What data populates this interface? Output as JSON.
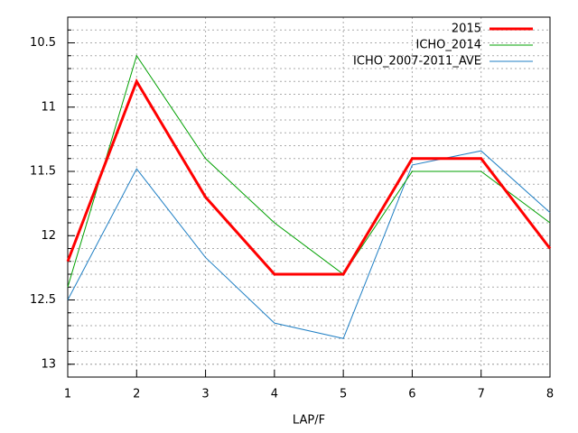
{
  "chart_data": {
    "type": "line",
    "x_label": "LAP/F",
    "x": [
      1,
      2,
      3,
      4,
      5,
      6,
      7,
      8
    ],
    "series": [
      {
        "name": "2015",
        "color": "#ff0000",
        "width": 3,
        "values": [
          12.2,
          10.8,
          11.7,
          12.3,
          12.3,
          11.4,
          11.4,
          12.1
        ]
      },
      {
        "name": "ICHO_2014",
        "color": "#00a000",
        "width": 1,
        "values": [
          12.4,
          10.6,
          11.4,
          11.9,
          12.3,
          11.5,
          11.5,
          11.9
        ]
      },
      {
        "name": "ICHO_2007-2011_AVE",
        "color": "#1f7fc4",
        "width": 1,
        "values": [
          12.5,
          11.48,
          12.17,
          12.68,
          12.8,
          11.45,
          11.34,
          11.82
        ]
      }
    ],
    "xlim": [
      1,
      8
    ],
    "xticks": [
      1,
      2,
      3,
      4,
      5,
      6,
      7,
      8
    ],
    "ylim": [
      13.1,
      10.3
    ],
    "yticks": [
      10.5,
      11,
      11.5,
      12,
      12.5,
      13
    ],
    "yminorticks": [
      10.4,
      10.6,
      10.7,
      10.8,
      10.9,
      11.1,
      11.2,
      11.3,
      11.4,
      11.6,
      11.7,
      11.8,
      11.9,
      12.1,
      12.2,
      12.3,
      12.4,
      12.6,
      12.7,
      12.8,
      12.9,
      13.0
    ],
    "grid": true,
    "legend": "top-right"
  }
}
